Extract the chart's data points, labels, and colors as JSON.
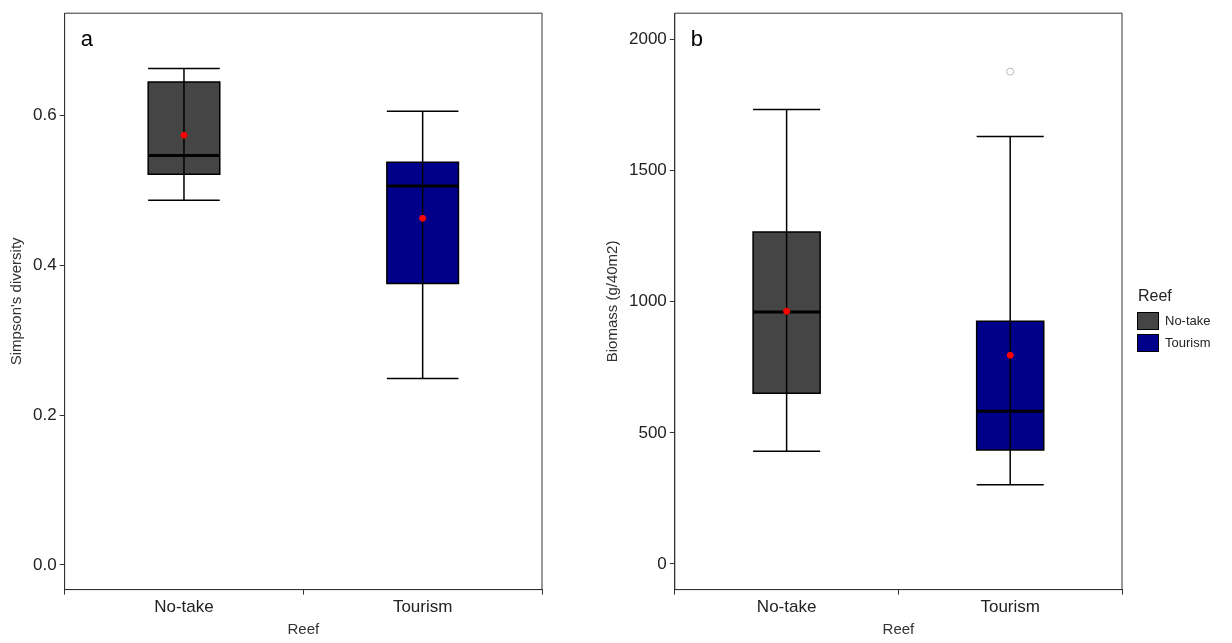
{
  "chart_data": [
    {
      "type": "box",
      "categories": [
        "No-take",
        "Tourism"
      ],
      "xlabel": "Reef",
      "ylabel": "Simpson's diversity",
      "annotations": [
        "a"
      ],
      "ylim": [
        -0.033,
        0.737
      ],
      "yticks": [
        {
          "value": 0,
          "label": "0.0"
        },
        {
          "value": 0.2,
          "label": "0.2"
        },
        {
          "value": 0.4,
          "label": "0.4"
        },
        {
          "value": 0.6,
          "label": "0.6"
        }
      ],
      "series": [
        {
          "color": "#454545",
          "boxes": [
            {
              "low": 0.487,
              "q1": 0.522,
              "median": 0.547,
              "q3": 0.645,
              "high": 0.663,
              "mean": 0.574
            },
            null
          ]
        },
        {
          "color": "#00008b",
          "boxes": [
            null,
            {
              "low": 0.249,
              "q1": 0.376,
              "median": 0.506,
              "q3": 0.538,
              "high": 0.606,
              "mean": 0.463
            }
          ]
        }
      ]
    },
    {
      "type": "box",
      "categories": [
        "No-take",
        "Tourism"
      ],
      "xlabel": "Reef",
      "ylabel": "Biomass (g/40m2)",
      "annotations": [
        "b"
      ],
      "legend": "right",
      "legend_title": "Reef",
      "ylim": [
        -98,
        2101
      ],
      "yticks": [
        0,
        500,
        1000,
        1500,
        2000
      ],
      "series": [
        {
          "name": "No-take",
          "color": "#454545",
          "boxes": [
            {
              "low": 430,
              "q1": 651,
              "median": 961,
              "q3": 1266,
              "high": 1734,
              "mean": 964
            },
            null
          ]
        },
        {
          "name": "Tourism",
          "color": "#00008b",
          "boxes": [
            null,
            {
              "low": 302,
              "q1": 435,
              "median": 582,
              "q3": 926,
              "high": 1631,
              "mean": 796,
              "outliers": [
                1878
              ]
            }
          ]
        }
      ]
    }
  ]
}
